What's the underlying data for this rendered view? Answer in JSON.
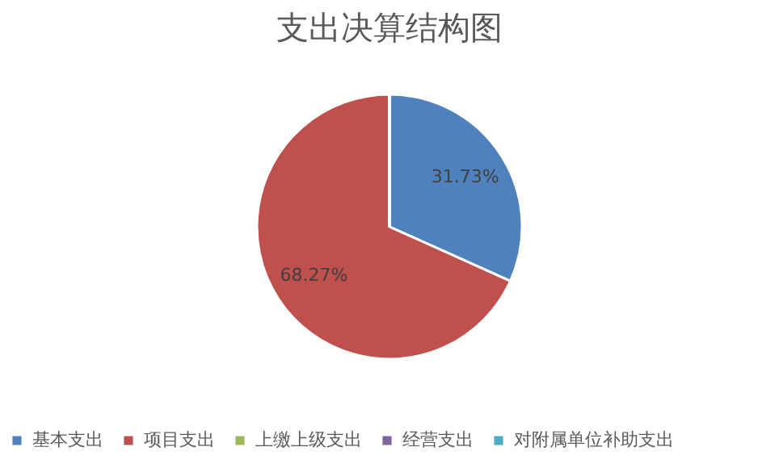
{
  "chart_data": {
    "type": "pie",
    "title": "支出决算结构图",
    "categories": [
      "基本支出",
      "项目支出",
      "上缴上级支出",
      "经营支出",
      "对附属单位补助支出"
    ],
    "values": [
      31.73,
      68.27,
      0,
      0,
      0
    ],
    "colors": [
      "#4f81bd",
      "#c0504d",
      "#9bbb59",
      "#8064a2",
      "#4bacc6"
    ],
    "value_labels": [
      "31.73%",
      "68.27%",
      null,
      null,
      null
    ],
    "legend": "bottom"
  }
}
